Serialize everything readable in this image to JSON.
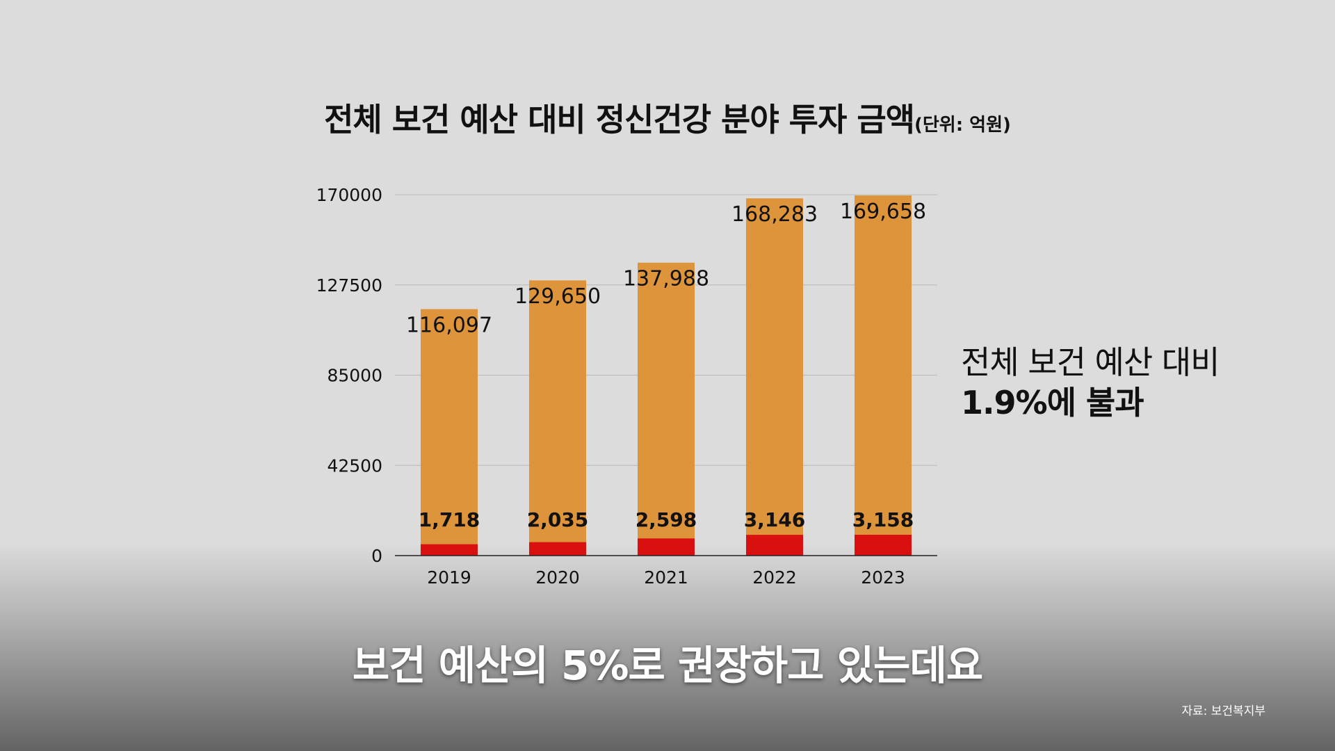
{
  "title": "전체 보건 예산 대비 정신건강 분야 투자 금액",
  "title_unit": "(단위: 억원)",
  "annotation": {
    "line1": "전체 보건 예산 대비",
    "line2": "1.9%에 불과"
  },
  "subtitle": "보건 예산의 5%로 권장하고 있는데요",
  "source": "자료: 보건복지부",
  "colors": {
    "total_bar": "#DE943A",
    "mental_health_bar": "#D91010",
    "gridline": "#b8b8b8"
  },
  "chart_data": {
    "type": "bar",
    "stacked": true,
    "categories": [
      "2019",
      "2020",
      "2021",
      "2022",
      "2023"
    ],
    "ylim": [
      0,
      170000
    ],
    "yticks": [
      "0",
      "42500",
      "85000",
      "127500",
      "170000"
    ],
    "grid": true,
    "series": [
      {
        "values": [
          116097,
          129650,
          137988,
          168283,
          169658
        ],
        "labels": [
          "116,097",
          "129,650",
          "137,988",
          "168,283",
          "169,658"
        ]
      },
      {
        "values": [
          1718,
          2035,
          2598,
          3146,
          3158
        ],
        "labels": [
          "1,718",
          "2,035",
          "2,598",
          "3,146",
          "3,158"
        ]
      }
    ]
  }
}
